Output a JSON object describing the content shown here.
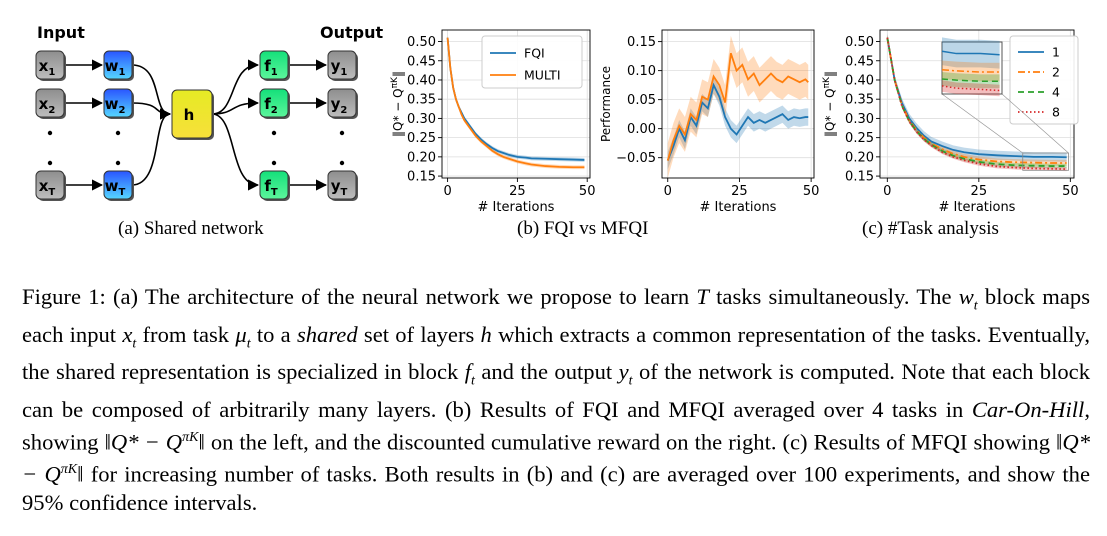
{
  "panel_a": {
    "input_label": "Input",
    "output_label": "Output",
    "x_nodes": [
      {
        "base": "x",
        "sub": "1"
      },
      {
        "base": "x",
        "sub": "2"
      },
      {
        "base": "x",
        "sub": "T"
      }
    ],
    "w_nodes": [
      {
        "base": "w",
        "sub": "1"
      },
      {
        "base": "w",
        "sub": "2"
      },
      {
        "base": "w",
        "sub": "T"
      }
    ],
    "h_node": "h",
    "f_nodes": [
      {
        "base": "f",
        "sub": "1"
      },
      {
        "base": "f",
        "sub": "2"
      },
      {
        "base": "f",
        "sub": "T"
      }
    ],
    "y_nodes": [
      {
        "base": "y",
        "sub": "1"
      },
      {
        "base": "y",
        "sub": "2"
      },
      {
        "base": "y",
        "sub": "T"
      }
    ],
    "colors": {
      "x": "#9e9e9e",
      "w_top": "#2a6bff",
      "w_bottom": "#5ad0ff",
      "h": "#f2e62a",
      "f": "#2ef07a",
      "y": "#a8a8a8"
    },
    "caption": "(a)  Shared network"
  },
  "panel_b_caption": "(b)  FQI vs MFQI",
  "panel_c_caption": "(c)  #Task analysis",
  "chart_data": [
    {
      "type": "line",
      "xlabel": "# Iterations",
      "ylabel": "‖Q* − Q^{πK}‖",
      "xlim": [
        -2,
        51
      ],
      "ylim": [
        0.145,
        0.53
      ],
      "xticks": [
        0,
        25,
        50
      ],
      "yticks": [
        0.15,
        0.2,
        0.25,
        0.3,
        0.35,
        0.4,
        0.45,
        0.5
      ],
      "yticklabels": [
        "0.15",
        "0.20",
        "0.25",
        "0.30",
        "0.35",
        "0.40",
        "0.45",
        "0.50"
      ],
      "grid": true,
      "legend": "top-right",
      "series": [
        {
          "name": "FQI",
          "color": "#1f77b4",
          "x": [
            0,
            1,
            2,
            3,
            4,
            5,
            6,
            8,
            10,
            12,
            14,
            16,
            18,
            20,
            22,
            25,
            28,
            30,
            35,
            40,
            45,
            49
          ],
          "y": [
            0.51,
            0.43,
            0.38,
            0.35,
            0.33,
            0.315,
            0.3,
            0.28,
            0.26,
            0.245,
            0.233,
            0.223,
            0.215,
            0.21,
            0.205,
            0.2,
            0.198,
            0.196,
            0.195,
            0.194,
            0.193,
            0.192
          ]
        },
        {
          "name": "MULTI",
          "color": "#ff7f0e",
          "x": [
            0,
            1,
            2,
            3,
            4,
            5,
            6,
            8,
            10,
            12,
            14,
            16,
            18,
            20,
            22,
            25,
            28,
            30,
            35,
            40,
            45,
            49
          ],
          "y": [
            0.51,
            0.43,
            0.38,
            0.35,
            0.33,
            0.31,
            0.295,
            0.275,
            0.255,
            0.24,
            0.228,
            0.216,
            0.207,
            0.2,
            0.195,
            0.188,
            0.183,
            0.18,
            0.176,
            0.174,
            0.173,
            0.173
          ]
        }
      ]
    },
    {
      "type": "line",
      "xlabel": "# Iterations",
      "ylabel": "Performance",
      "xlim": [
        -2,
        51
      ],
      "ylim": [
        -0.085,
        0.17
      ],
      "xticks": [
        0,
        25,
        50
      ],
      "yticks": [
        -0.05,
        0,
        0.05,
        0.1,
        0.15
      ],
      "yticklabels": [
        "−0.05",
        "0.00",
        "0.05",
        "0.10",
        "0.15"
      ],
      "grid": true,
      "series": [
        {
          "name": "FQI",
          "color": "#1f77b4",
          "band": 0.015,
          "x": [
            0,
            2,
            4,
            6,
            8,
            10,
            12,
            14,
            16,
            18,
            20,
            22,
            24,
            26,
            28,
            30,
            32,
            34,
            36,
            38,
            40,
            42,
            44,
            46,
            48,
            49
          ],
          "y": [
            -0.055,
            -0.03,
            0.0,
            -0.02,
            0.02,
            0.005,
            0.045,
            0.035,
            0.075,
            0.055,
            0.02,
            0.0,
            -0.01,
            0.005,
            0.02,
            0.01,
            0.015,
            0.01,
            0.015,
            0.02,
            0.025,
            0.015,
            0.02,
            0.018,
            0.02,
            0.02
          ]
        },
        {
          "name": "MULTI",
          "color": "#ff7f0e",
          "band": 0.03,
          "x": [
            0,
            2,
            4,
            6,
            8,
            10,
            12,
            14,
            16,
            18,
            20,
            22,
            24,
            26,
            28,
            30,
            32,
            34,
            36,
            38,
            40,
            42,
            44,
            46,
            48,
            49
          ],
          "y": [
            -0.055,
            -0.02,
            0.005,
            -0.01,
            0.025,
            0.015,
            0.055,
            0.05,
            0.09,
            0.075,
            0.045,
            0.13,
            0.1,
            0.11,
            0.085,
            0.095,
            0.075,
            0.085,
            0.095,
            0.085,
            0.08,
            0.09,
            0.085,
            0.08,
            0.085,
            0.08
          ]
        }
      ]
    },
    {
      "type": "line",
      "xlabel": "# Iterations",
      "ylabel": "‖Q* − Q^{πK}‖",
      "xlim": [
        -2,
        51
      ],
      "ylim": [
        0.145,
        0.53
      ],
      "xticks": [
        0,
        25,
        50
      ],
      "yticks": [
        0.15,
        0.2,
        0.25,
        0.3,
        0.35,
        0.4,
        0.45,
        0.5
      ],
      "yticklabels": [
        "0.15",
        "0.20",
        "0.25",
        "0.30",
        "0.35",
        "0.40",
        "0.45",
        "0.50"
      ],
      "grid": true,
      "legend": "top-right",
      "series": [
        {
          "name": "1",
          "color": "#1f77b4",
          "dash": "",
          "band": 0.012,
          "x": [
            0,
            2,
            4,
            6,
            8,
            10,
            12,
            15,
            18,
            21,
            25,
            30,
            35,
            40,
            45,
            49
          ],
          "y": [
            0.51,
            0.4,
            0.34,
            0.3,
            0.275,
            0.255,
            0.24,
            0.228,
            0.218,
            0.212,
            0.207,
            0.204,
            0.202,
            0.2,
            0.2,
            0.199
          ]
        },
        {
          "name": "2",
          "color": "#ff7f0e",
          "dash": "7 3 2 3",
          "band": 0.008,
          "x": [
            0,
            2,
            4,
            6,
            8,
            10,
            12,
            15,
            18,
            21,
            25,
            30,
            35,
            40,
            45,
            49
          ],
          "y": [
            0.51,
            0.4,
            0.335,
            0.295,
            0.27,
            0.25,
            0.235,
            0.22,
            0.208,
            0.2,
            0.193,
            0.188,
            0.186,
            0.185,
            0.184,
            0.184
          ]
        },
        {
          "name": "4",
          "color": "#2ca02c",
          "dash": "6 4",
          "band": 0.006,
          "x": [
            0,
            2,
            4,
            6,
            8,
            10,
            12,
            15,
            18,
            21,
            25,
            30,
            35,
            40,
            45,
            49
          ],
          "y": [
            0.51,
            0.4,
            0.333,
            0.293,
            0.267,
            0.247,
            0.232,
            0.215,
            0.203,
            0.195,
            0.187,
            0.181,
            0.178,
            0.177,
            0.176,
            0.176
          ]
        },
        {
          "name": "8",
          "color": "#d62728",
          "dash": "1.5 2.5",
          "band": 0.005,
          "x": [
            0,
            2,
            4,
            6,
            8,
            10,
            12,
            15,
            18,
            21,
            25,
            30,
            35,
            40,
            45,
            49
          ],
          "y": [
            0.51,
            0.4,
            0.332,
            0.292,
            0.265,
            0.245,
            0.23,
            0.212,
            0.2,
            0.191,
            0.182,
            0.175,
            0.172,
            0.17,
            0.169,
            0.168
          ]
        }
      ]
    }
  ],
  "caption": {
    "p1": "Figure 1: (a) The architecture of the neural network we propose to learn ",
    "T": "T",
    "p2": " tasks simultaneously. The ",
    "wt": "w",
    "wt_sub": "t",
    "p3": " block maps each input ",
    "xt": "x",
    "xt_sub": "t",
    "p4": " from task ",
    "mut": "μ",
    "mut_sub": "t",
    "p5": " to a ",
    "shared": "shared",
    "p6": " set of layers ",
    "h": "h",
    "p7": " which extracts a common representation of the tasks. Eventually, the shared representation is specialized in block ",
    "ft": "f",
    "ft_sub": "t",
    "p8": " and the output ",
    "yt": "y",
    "yt_sub": "t",
    "p9": " of the network is computed. Note that each block can be composed of arbitrarily many layers. (b) Results of FQI and MFQI averaged over ",
    "four": "4",
    "p10": " tasks in ",
    "coh": "Car-On-Hill",
    "p11": ", showing ",
    "norm1": "‖Q* − Q",
    "norm1_sup": "πK",
    "norm1_end": "‖",
    "p12": " on the left, and the discounted cumulative reward on the right. (c) Results of MFQI showing ",
    "norm2": "‖Q* − Q",
    "norm2_sup": "πK",
    "norm2_end": "‖",
    "p13": " for increasing number of tasks. Both results in (b) and (c) are averaged over ",
    "hundred": "100",
    "p14": " experiments, and show the ",
    "pct": "95%",
    "p15": " confidence intervals."
  }
}
